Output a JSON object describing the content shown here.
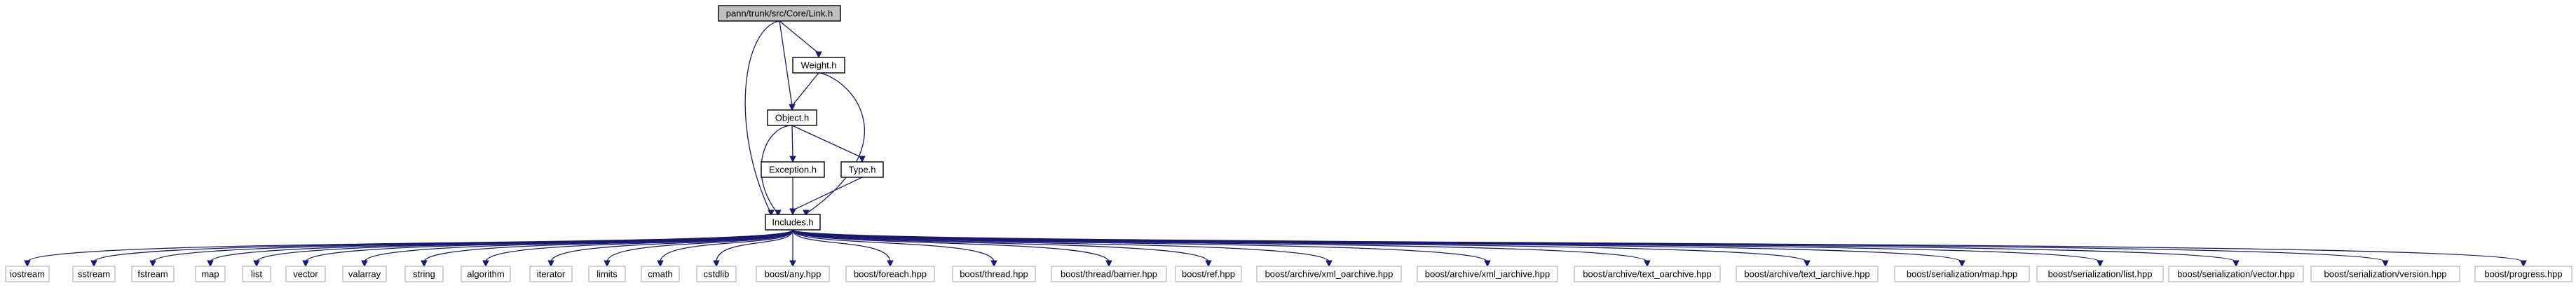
{
  "graph": {
    "nodes": [
      {
        "id": "link",
        "label": "pann/trunk/src/Core/Link.h",
        "root": true
      },
      {
        "id": "weight",
        "label": "Weight.h"
      },
      {
        "id": "object",
        "label": "Object.h"
      },
      {
        "id": "exception",
        "label": "Exception.h"
      },
      {
        "id": "type",
        "label": "Type.h"
      },
      {
        "id": "includes",
        "label": "Includes.h"
      },
      {
        "id": "iostream",
        "label": "iostream",
        "leaf": true
      },
      {
        "id": "sstream",
        "label": "sstream",
        "leaf": true
      },
      {
        "id": "fstream",
        "label": "fstream",
        "leaf": true
      },
      {
        "id": "map",
        "label": "map",
        "leaf": true
      },
      {
        "id": "list",
        "label": "list",
        "leaf": true
      },
      {
        "id": "vector",
        "label": "vector",
        "leaf": true
      },
      {
        "id": "valarray",
        "label": "valarray",
        "leaf": true
      },
      {
        "id": "string",
        "label": "string",
        "leaf": true
      },
      {
        "id": "algorithm",
        "label": "algorithm",
        "leaf": true
      },
      {
        "id": "iterator",
        "label": "iterator",
        "leaf": true
      },
      {
        "id": "limits",
        "label": "limits",
        "leaf": true
      },
      {
        "id": "cmath",
        "label": "cmath",
        "leaf": true
      },
      {
        "id": "cstdlib",
        "label": "cstdlib",
        "leaf": true
      },
      {
        "id": "boost_any",
        "label": "boost/any.hpp",
        "leaf": true
      },
      {
        "id": "boost_foreach",
        "label": "boost/foreach.hpp",
        "leaf": true
      },
      {
        "id": "boost_thread",
        "label": "boost/thread.hpp",
        "leaf": true
      },
      {
        "id": "boost_barrier",
        "label": "boost/thread/barrier.hpp",
        "leaf": true
      },
      {
        "id": "boost_ref",
        "label": "boost/ref.hpp",
        "leaf": true
      },
      {
        "id": "boost_xml_oarchive",
        "label": "boost/archive/xml_oarchive.hpp",
        "leaf": true
      },
      {
        "id": "boost_xml_iarchive",
        "label": "boost/archive/xml_iarchive.hpp",
        "leaf": true
      },
      {
        "id": "boost_text_oarchive",
        "label": "boost/archive/text_oarchive.hpp",
        "leaf": true
      },
      {
        "id": "boost_text_iarchive",
        "label": "boost/archive/text_iarchive.hpp",
        "leaf": true
      },
      {
        "id": "boost_ser_map",
        "label": "boost/serialization/map.hpp",
        "leaf": true
      },
      {
        "id": "boost_ser_list",
        "label": "boost/serialization/list.hpp",
        "leaf": true
      },
      {
        "id": "boost_ser_vector",
        "label": "boost/serialization/vector.hpp",
        "leaf": true
      },
      {
        "id": "boost_ser_version",
        "label": "boost/serialization/version.hpp",
        "leaf": true
      },
      {
        "id": "boost_progress",
        "label": "boost/progress.hpp",
        "leaf": true
      }
    ],
    "edges": [
      [
        "link",
        "weight"
      ],
      [
        "link",
        "object"
      ],
      [
        "link",
        "includes"
      ],
      [
        "weight",
        "object"
      ],
      [
        "weight",
        "includes"
      ],
      [
        "object",
        "exception"
      ],
      [
        "object",
        "type"
      ],
      [
        "object",
        "includes"
      ],
      [
        "exception",
        "includes"
      ],
      [
        "type",
        "includes"
      ],
      [
        "includes",
        "iostream"
      ],
      [
        "includes",
        "sstream"
      ],
      [
        "includes",
        "fstream"
      ],
      [
        "includes",
        "map"
      ],
      [
        "includes",
        "list"
      ],
      [
        "includes",
        "vector"
      ],
      [
        "includes",
        "valarray"
      ],
      [
        "includes",
        "string"
      ],
      [
        "includes",
        "algorithm"
      ],
      [
        "includes",
        "iterator"
      ],
      [
        "includes",
        "limits"
      ],
      [
        "includes",
        "cmath"
      ],
      [
        "includes",
        "cstdlib"
      ],
      [
        "includes",
        "boost_any"
      ],
      [
        "includes",
        "boost_foreach"
      ],
      [
        "includes",
        "boost_thread"
      ],
      [
        "includes",
        "boost_barrier"
      ],
      [
        "includes",
        "boost_ref"
      ],
      [
        "includes",
        "boost_xml_oarchive"
      ],
      [
        "includes",
        "boost_xml_iarchive"
      ],
      [
        "includes",
        "boost_text_oarchive"
      ],
      [
        "includes",
        "boost_text_iarchive"
      ],
      [
        "includes",
        "boost_ser_map"
      ],
      [
        "includes",
        "boost_ser_list"
      ],
      [
        "includes",
        "boost_ser_vector"
      ],
      [
        "includes",
        "boost_ser_version"
      ],
      [
        "includes",
        "boost_progress"
      ]
    ]
  }
}
